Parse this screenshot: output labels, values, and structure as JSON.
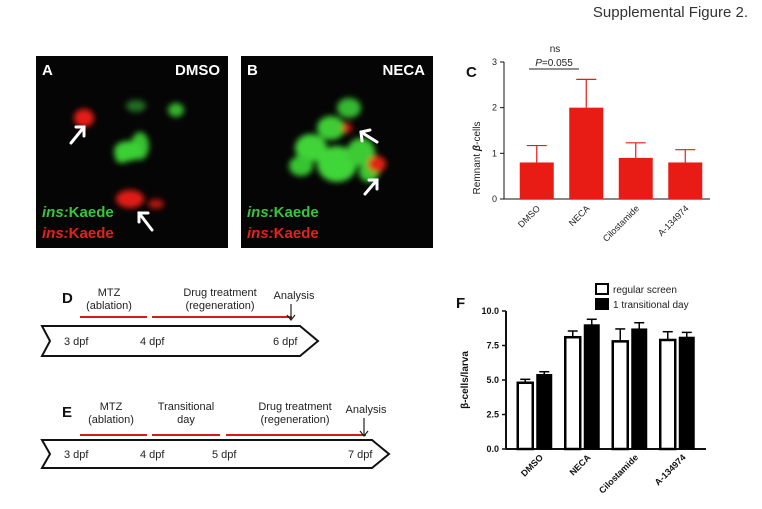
{
  "figure_title": "Supplemental Figure 2.",
  "panels": {
    "A": {
      "letter": "A",
      "condition": "DMSO",
      "label_green_gene": "ins:",
      "label_green_rest": "Kaede",
      "label_red_gene": "ins:",
      "label_red_rest": "Kaede"
    },
    "B": {
      "letter": "B",
      "condition": "NECA",
      "label_green_gene": "ins:",
      "label_green_rest": "Kaede",
      "label_red_gene": "ins:",
      "label_red_rest": "Kaede"
    },
    "C": {
      "letter": "C",
      "sig_ns": "ns",
      "sig_p_label": "P",
      "sig_p_value": "=0.055"
    },
    "D": {
      "letter": "D",
      "mtz": "MTZ",
      "mtz_sub": "(ablation)",
      "drug": "Drug treatment",
      "drug_sub": "(regeneration)",
      "analysis": "Analysis",
      "ticks": [
        "3 dpf",
        "4 dpf",
        "6 dpf"
      ]
    },
    "E": {
      "letter": "E",
      "mtz": "MTZ",
      "mtz_sub": "(ablation)",
      "trans": "Transitional",
      "trans_sub": "day",
      "drug": "Drug treatment",
      "drug_sub": "(regeneration)",
      "analysis": "Analysis",
      "ticks": [
        "3 dpf",
        "4 dpf",
        "5 dpf",
        "7 dpf"
      ]
    },
    "F": {
      "letter": "F"
    }
  },
  "colors": {
    "red": "#e81c15",
    "green": "#39c53a",
    "black": "#000000"
  },
  "chart_data": [
    {
      "id": "C",
      "type": "bar",
      "ylabel": "Remnant β-cells",
      "ylabel_prefix": "Remnant ",
      "ylabel_beta": "β",
      "ylabel_suffix": "-cells",
      "ylim": [
        0,
        3
      ],
      "yticks": [
        "0",
        "1",
        "2",
        "3"
      ],
      "categories": [
        "DMSO",
        "NECA",
        "Cilostamide",
        "A-134974"
      ],
      "values": [
        0.8,
        2.0,
        0.9,
        0.8
      ],
      "errors": [
        0.37,
        0.62,
        0.33,
        0.28
      ],
      "color": "#e81c15"
    },
    {
      "id": "F",
      "type": "bar",
      "ylabel": "β-cells/larva",
      "ylim": [
        0,
        10
      ],
      "yticks": [
        "0.0",
        "2.5",
        "5.0",
        "7.5",
        "10.0"
      ],
      "categories": [
        "DMSO",
        "NECA",
        "Cilostamide",
        "A-134974"
      ],
      "legend": [
        "regular screen",
        "1 transitional day"
      ],
      "series": [
        {
          "name": "regular screen",
          "values": [
            4.8,
            8.1,
            7.8,
            7.9
          ],
          "errors": [
            0.25,
            0.45,
            0.9,
            0.6
          ]
        },
        {
          "name": "1 transitional day",
          "values": [
            5.4,
            9.0,
            8.7,
            8.1
          ],
          "errors": [
            0.2,
            0.4,
            0.45,
            0.35
          ]
        }
      ]
    }
  ]
}
